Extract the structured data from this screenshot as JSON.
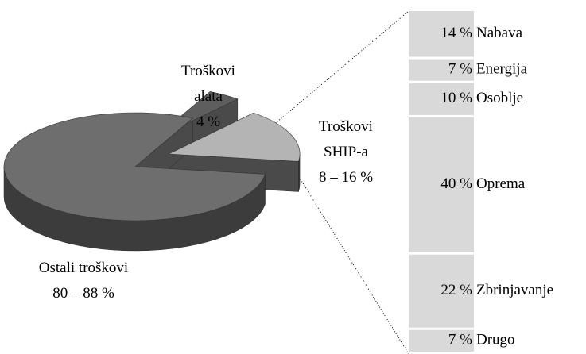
{
  "chart_data": {
    "type": "pie-of-bar",
    "categories": [
      "Troškovi alata",
      "Troškovi SHIP-a",
      "Ostali troškovi"
    ],
    "values": [
      4,
      16,
      80
    ],
    "value_labels": [
      "4 %",
      "8 – 16 %",
      "80 – 88 %"
    ],
    "colors": [
      "#5e5e5e",
      "#b4b4b4",
      "#6e6e6e"
    ],
    "breakdown": {
      "categories": [
        "Nabava",
        "Energija",
        "Osoblje",
        "Oprema",
        "Zbrinjavanje",
        "Drugo"
      ],
      "values": [
        14,
        7,
        10,
        40,
        22,
        7
      ],
      "value_labels": [
        "14 %",
        "7 %",
        "10 %",
        "40 %",
        "22 %",
        "7 %"
      ],
      "color": "#d9d9d9"
    }
  }
}
